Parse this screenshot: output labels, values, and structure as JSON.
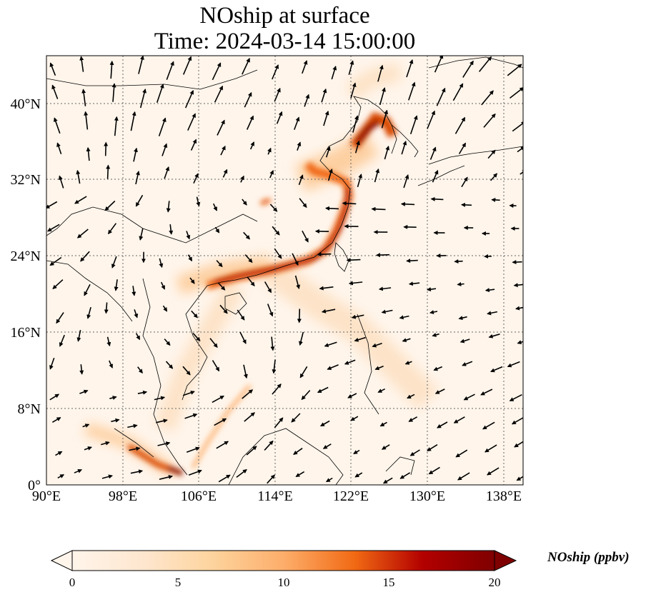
{
  "title": {
    "line1": "NOship at surface",
    "line2": "Time: 2024-03-14 15:00:00"
  },
  "map": {
    "lon_range": [
      90,
      140
    ],
    "lat_range": [
      0,
      45
    ],
    "lon_ticks": [
      "90°E",
      "98°E",
      "106°E",
      "114°E",
      "122°E",
      "130°E",
      "138°E"
    ],
    "lat_ticks": [
      "0°",
      "8°N",
      "16°N",
      "24°N",
      "32°N",
      "40°N"
    ],
    "gridlines": "dotted",
    "field_variable": "NOship",
    "vectors": "wind arrows"
  },
  "colorbar": {
    "label": "NOship (ppbv)",
    "ticks": [
      "0",
      "5",
      "10",
      "15",
      "20"
    ],
    "min": 0,
    "max": 20,
    "extend": "both",
    "colormap": [
      "#fff5eb",
      "#fdd49e",
      "#fdae6b",
      "#f16913",
      "#d94801",
      "#a63603",
      "#7f0000"
    ]
  }
}
